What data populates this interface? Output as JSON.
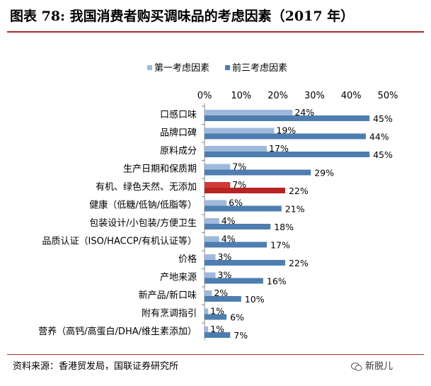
{
  "title": "图表 78: 我国消费者购买调味品的考虑因素（2017 年）",
  "source": "资料来源：香港贸发局，国联证券研究所",
  "watermark": "新脱儿",
  "colors": {
    "first": "#9fb9dc",
    "top3": "#4e7eb0",
    "highlight_first": "#d23a3a",
    "highlight_top3": "#b82424",
    "title_rule": "#a52a2a"
  },
  "chart_data": {
    "type": "bar",
    "orientation": "horizontal",
    "categories": [
      "口感口味",
      "品牌口碑",
      "原料成分",
      "生产日期和保质期",
      "有机、绿色天然、无添加",
      "健康（低糖/低钠/低脂等）",
      "包装设计/小包装/方便卫生",
      "品质认证（ISO/HACCP/有机认证等）",
      "价格",
      "产地来源",
      "新产品/新口味",
      "附有烹调指引",
      "营养（高钙/高蛋白/DHA/维生素添加）"
    ],
    "series": [
      {
        "name": "第一考虑因素",
        "values": [
          24,
          19,
          17,
          7,
          7,
          6,
          4,
          4,
          3,
          3,
          2,
          1,
          1
        ]
      },
      {
        "name": "前三考虑因素",
        "values": [
          45,
          44,
          45,
          29,
          22,
          21,
          18,
          17,
          22,
          16,
          10,
          6,
          7
        ]
      }
    ],
    "highlight_category": "有机、绿色天然、无添加",
    "xlim": [
      0,
      50
    ],
    "xticks": [
      "0%",
      "10%",
      "20%",
      "30%",
      "40%",
      "50%"
    ],
    "value_suffix": "%",
    "legend_position": "top",
    "grid": false
  }
}
